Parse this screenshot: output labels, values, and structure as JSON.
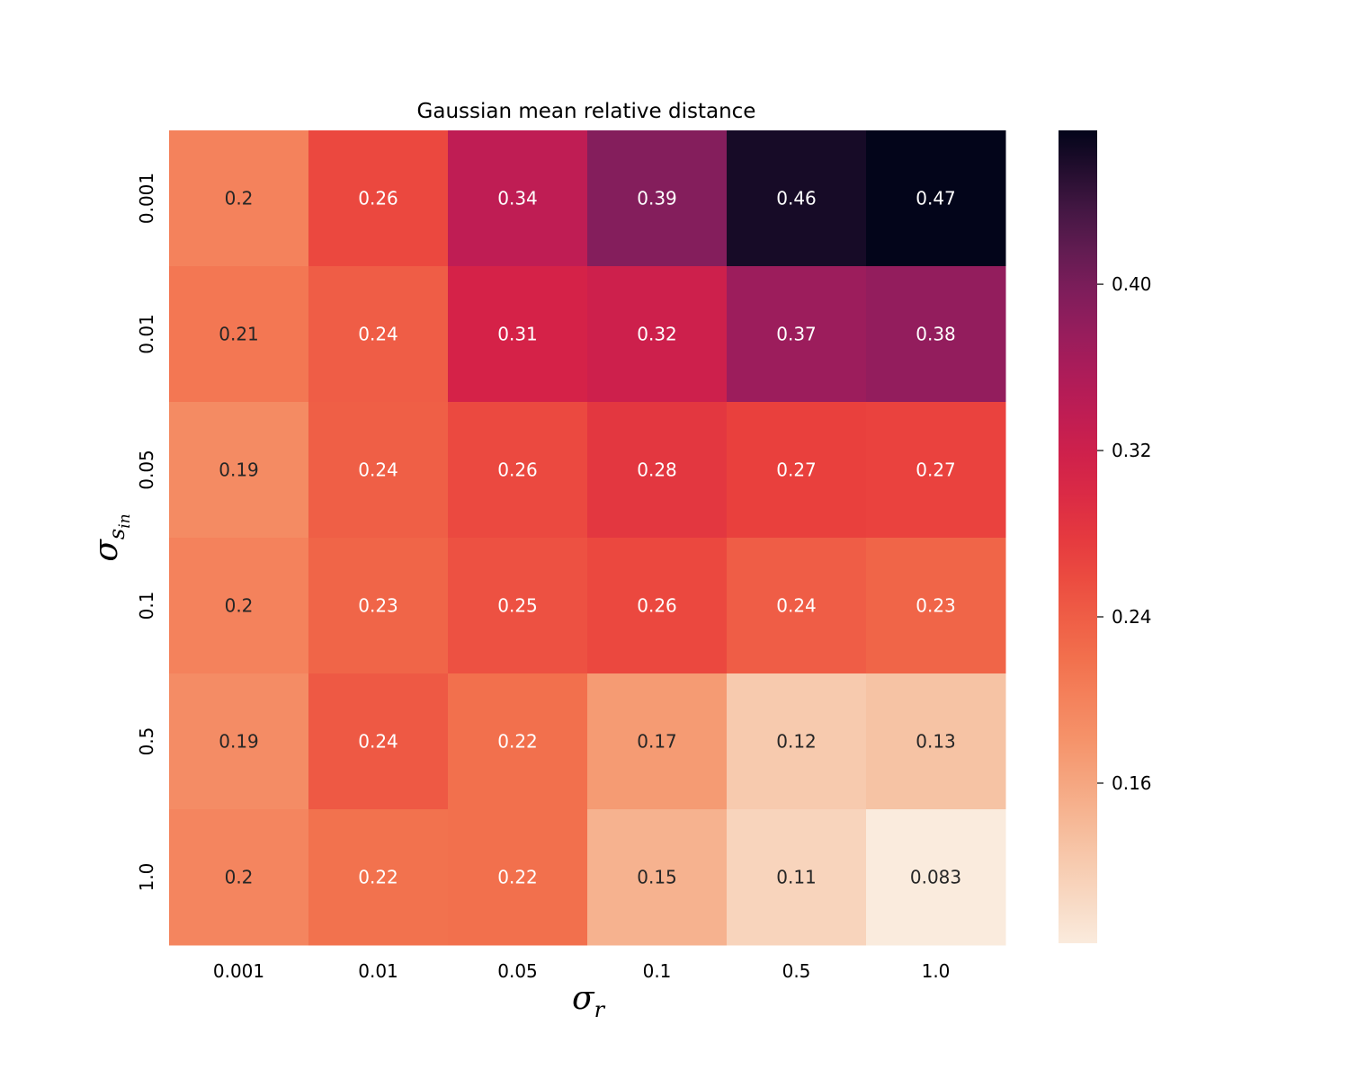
{
  "chart_data": {
    "type": "heatmap",
    "title": "Gaussian mean relative distance",
    "xlabel": {
      "symbol": "σ",
      "subscript": "r"
    },
    "ylabel": {
      "symbol": "σ",
      "subscript": "s",
      "sub_subscript": "in"
    },
    "x_categories": [
      "0.001",
      "0.01",
      "0.05",
      "0.1",
      "0.5",
      "1.0"
    ],
    "y_categories": [
      "0.001",
      "0.01",
      "0.05",
      "0.1",
      "0.5",
      "1.0"
    ],
    "annotations": [
      [
        "0.2",
        "0.26",
        "0.34",
        "0.39",
        "0.46",
        "0.47"
      ],
      [
        "0.21",
        "0.24",
        "0.31",
        "0.32",
        "0.37",
        "0.38"
      ],
      [
        "0.19",
        "0.24",
        "0.26",
        "0.28",
        "0.27",
        "0.27"
      ],
      [
        "0.2",
        "0.23",
        "0.25",
        "0.26",
        "0.24",
        "0.23"
      ],
      [
        "0.19",
        "0.24",
        "0.22",
        "0.17",
        "0.12",
        "0.13"
      ],
      [
        "0.2",
        "0.22",
        "0.22",
        "0.15",
        "0.11",
        "0.083"
      ]
    ],
    "values": [
      [
        0.2,
        0.262,
        0.338,
        0.392,
        0.462,
        0.474
      ],
      [
        0.212,
        0.24,
        0.31,
        0.32,
        0.372,
        0.38
      ],
      [
        0.19,
        0.238,
        0.26,
        0.282,
        0.27,
        0.268
      ],
      [
        0.2,
        0.232,
        0.252,
        0.262,
        0.24,
        0.232
      ],
      [
        0.188,
        0.244,
        0.22,
        0.172,
        0.122,
        0.13
      ],
      [
        0.196,
        0.218,
        0.22,
        0.148,
        0.11,
        0.083
      ]
    ],
    "colorbar": {
      "ticks": [
        "0.16",
        "0.24",
        "0.32",
        "0.40"
      ],
      "tick_values": [
        0.16,
        0.24,
        0.32,
        0.4
      ],
      "vmin": 0.083,
      "vmax": 0.474
    },
    "colormap": "rocket_r",
    "grid": false
  }
}
